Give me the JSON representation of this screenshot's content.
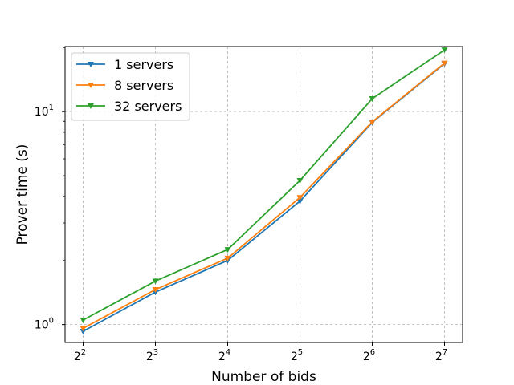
{
  "chart_data": {
    "type": "line",
    "title": "",
    "xlabel": "Number of bids",
    "ylabel": "Prover time (s)",
    "x": [
      4,
      8,
      16,
      32,
      64,
      128
    ],
    "x_tick_labels": [
      {
        "base": "2",
        "exp": "2"
      },
      {
        "base": "2",
        "exp": "3"
      },
      {
        "base": "2",
        "exp": "4"
      },
      {
        "base": "2",
        "exp": "5"
      },
      {
        "base": "2",
        "exp": "6"
      },
      {
        "base": "2",
        "exp": "7"
      }
    ],
    "x_scale": "log2",
    "y_scale": "log10",
    "y_tick_labels": [
      {
        "value": 1,
        "base": "10",
        "exp": "0"
      },
      {
        "value": 10,
        "base": "10",
        "exp": "1"
      }
    ],
    "grid": true,
    "legend_position": "top-left",
    "marker": "triangle-down",
    "series": [
      {
        "name": "1 servers",
        "color": "#1f77b4",
        "values": [
          0.93,
          1.42,
          2.0,
          3.8,
          8.9,
          16.8
        ]
      },
      {
        "name": "8 servers",
        "color": "#ff7f0e",
        "values": [
          0.96,
          1.46,
          2.05,
          3.95,
          8.95,
          16.9
        ]
      },
      {
        "name": "32 servers",
        "color": "#2ca02c",
        "values": [
          1.05,
          1.6,
          2.25,
          4.75,
          11.5,
          19.5
        ]
      }
    ]
  }
}
